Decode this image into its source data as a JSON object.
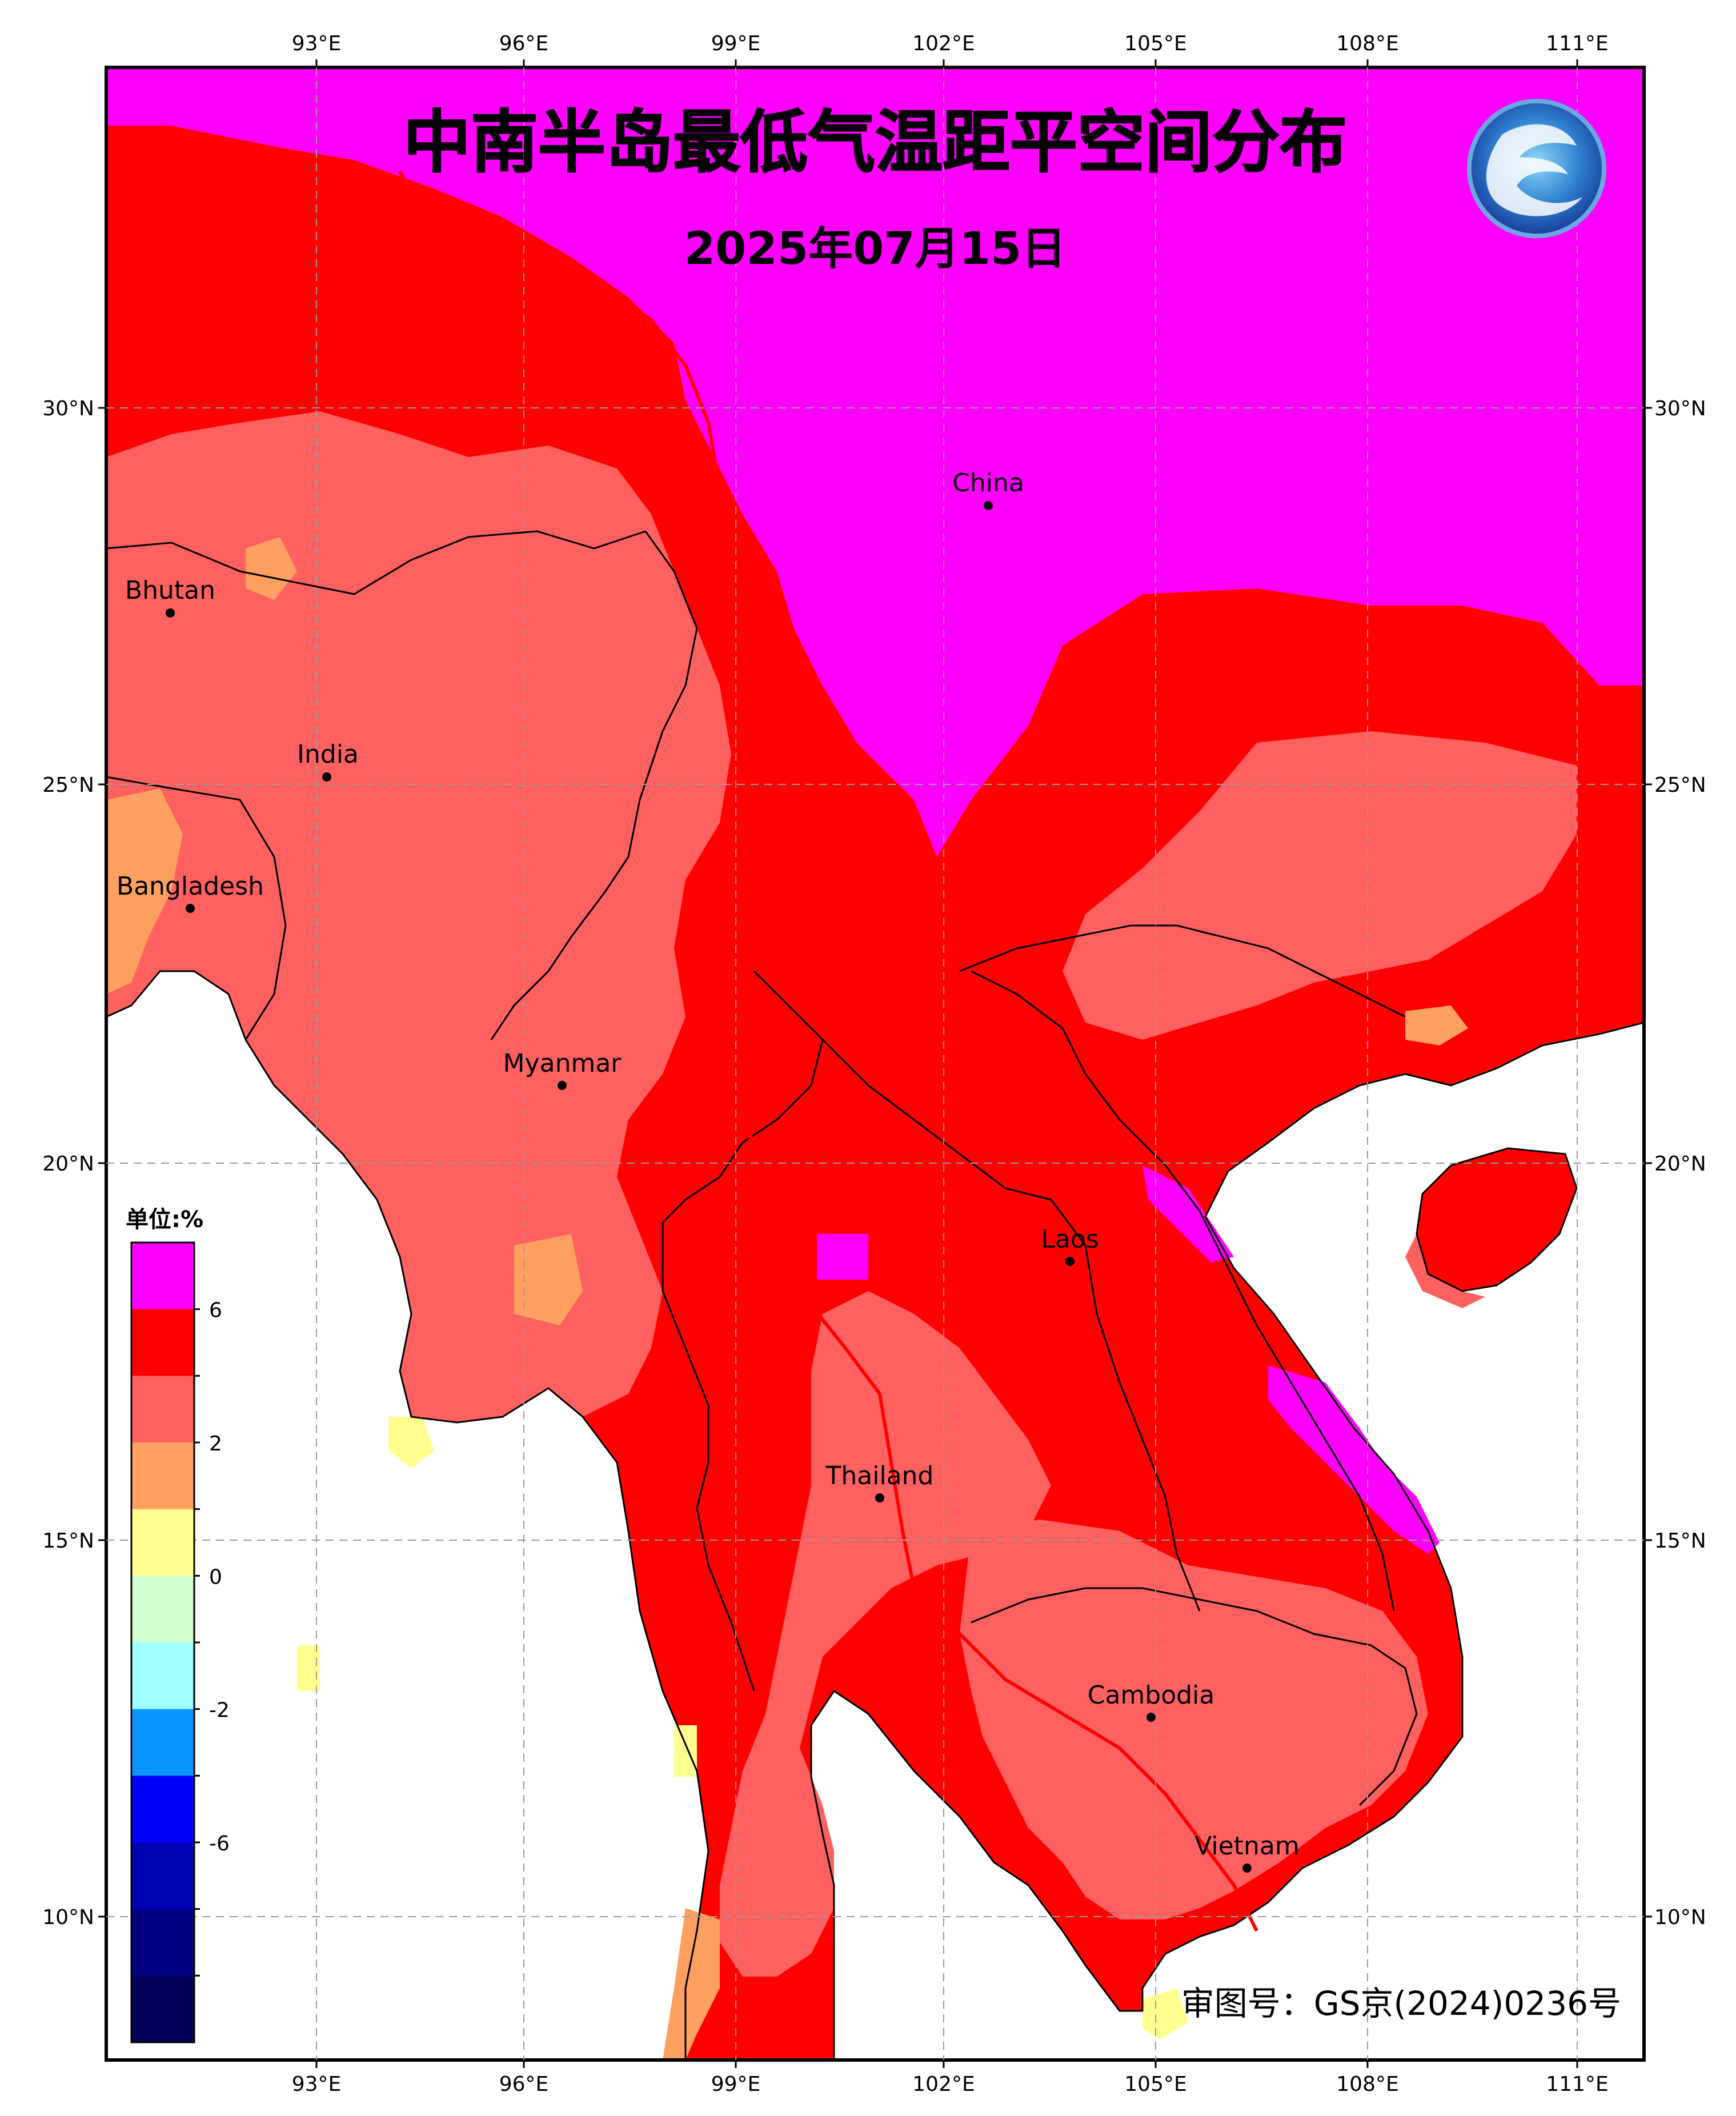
{
  "title": "中南半岛最低气温距平空间分布",
  "date": "2025年07月15日",
  "approval_no": "审图号：GS京(2024)0236号",
  "logo_icon": "dragon-logo-icon",
  "lon_ticks": [
    "93°E",
    "96°E",
    "99°E",
    "102°E",
    "105°E",
    "108°E",
    "111°E"
  ],
  "lat_ticks": [
    "30°N",
    "25°N",
    "20°N",
    "15°N",
    "10°N"
  ],
  "legend": {
    "unit": "单位:%",
    "tick_labels": [
      "6",
      "2",
      "0",
      "-2",
      "-6"
    ],
    "colors": [
      "#ff00ff",
      "#ff0000",
      "#ff6060",
      "#ffa060",
      "#ffff90",
      "#d0ffd0",
      "#a0ffff",
      "#0a96ff",
      "#0000ff",
      "#0000b4",
      "#000080",
      "#00005a"
    ]
  },
  "places": [
    {
      "name": "China"
    },
    {
      "name": "Bhutan"
    },
    {
      "name": "India"
    },
    {
      "name": "Bangladesh"
    },
    {
      "name": "Myanmar"
    },
    {
      "name": "Laos"
    },
    {
      "name": "Thailand"
    },
    {
      "name": "Cambodia"
    },
    {
      "name": "Vietnam"
    }
  ]
}
